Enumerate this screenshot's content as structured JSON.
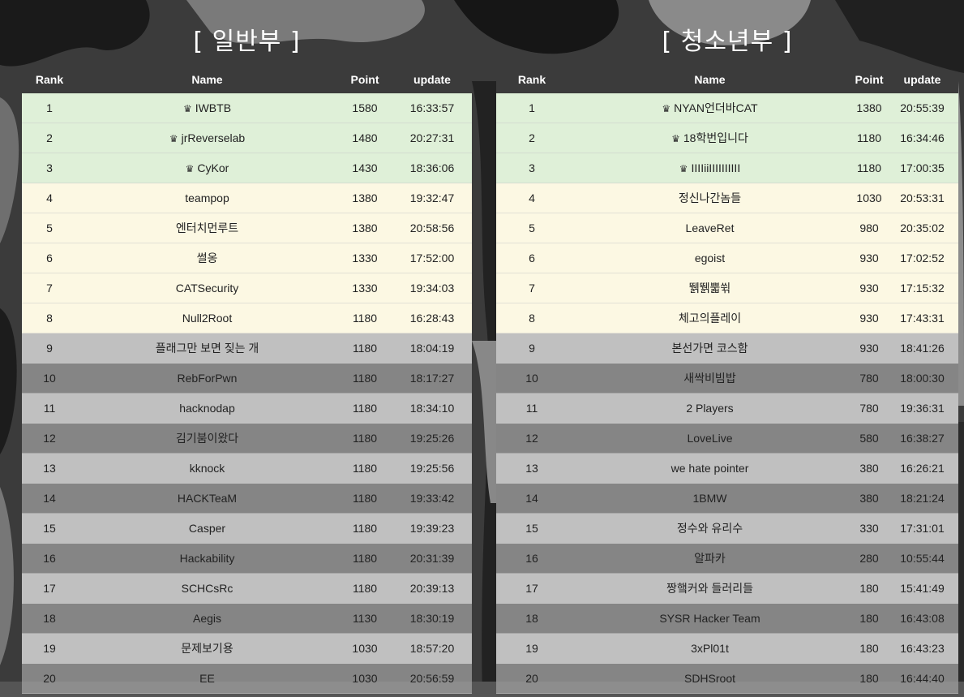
{
  "general": {
    "title": "[ 일반부 ]",
    "columns": [
      "Rank",
      "Name",
      "Point",
      "update"
    ],
    "rows": [
      {
        "rank": "1",
        "name": "IWBTB",
        "point": "1580",
        "update": "16:33:57",
        "tier": "gold"
      },
      {
        "rank": "2",
        "name": "jrReverselab",
        "point": "1480",
        "update": "20:27:31",
        "tier": "gold"
      },
      {
        "rank": "3",
        "name": "CyKor",
        "point": "1430",
        "update": "18:36:06",
        "tier": "gold"
      },
      {
        "rank": "4",
        "name": "teampop",
        "point": "1380",
        "update": "19:32:47",
        "tier": "yellow"
      },
      {
        "rank": "5",
        "name": "엔터치먼루트",
        "point": "1380",
        "update": "20:58:56",
        "tier": "yellow"
      },
      {
        "rank": "6",
        "name": "썰옹",
        "point": "1330",
        "update": "17:52:00",
        "tier": "yellow"
      },
      {
        "rank": "7",
        "name": "CATSecurity",
        "point": "1330",
        "update": "19:34:03",
        "tier": "yellow"
      },
      {
        "rank": "8",
        "name": "Null2Root",
        "point": "1180",
        "update": "16:28:43",
        "tier": "yellow"
      },
      {
        "rank": "9",
        "name": "플래그만 보면 짖는 개",
        "point": "1180",
        "update": "18:04:19",
        "tier": "odd"
      },
      {
        "rank": "10",
        "name": "RebForPwn",
        "point": "1180",
        "update": "18:17:27",
        "tier": "even"
      },
      {
        "rank": "11",
        "name": "hacknodap",
        "point": "1180",
        "update": "18:34:10",
        "tier": "odd"
      },
      {
        "rank": "12",
        "name": "김기붐이왔다",
        "point": "1180",
        "update": "19:25:26",
        "tier": "even"
      },
      {
        "rank": "13",
        "name": "kknock",
        "point": "1180",
        "update": "19:25:56",
        "tier": "odd"
      },
      {
        "rank": "14",
        "name": "HACKTeaM",
        "point": "1180",
        "update": "19:33:42",
        "tier": "even"
      },
      {
        "rank": "15",
        "name": "Casper",
        "point": "1180",
        "update": "19:39:23",
        "tier": "odd"
      },
      {
        "rank": "16",
        "name": "Hackability",
        "point": "1180",
        "update": "20:31:39",
        "tier": "even"
      },
      {
        "rank": "17",
        "name": "SCHCsRc",
        "point": "1180",
        "update": "20:39:13",
        "tier": "odd"
      },
      {
        "rank": "18",
        "name": "Aegis",
        "point": "1130",
        "update": "18:30:19",
        "tier": "even"
      },
      {
        "rank": "19",
        "name": "문제보기용",
        "point": "1030",
        "update": "18:57:20",
        "tier": "odd"
      },
      {
        "rank": "20",
        "name": "EE",
        "point": "1030",
        "update": "20:56:59",
        "tier": "even"
      }
    ]
  },
  "youth": {
    "title": "[ 청소년부 ]",
    "columns": [
      "Rank",
      "Name",
      "Point",
      "update"
    ],
    "rows": [
      {
        "rank": "1",
        "name": "NYAN언더바CAT",
        "point": "1380",
        "update": "20:55:39",
        "tier": "gold"
      },
      {
        "rank": "2",
        "name": "18학번입니다",
        "point": "1180",
        "update": "16:34:46",
        "tier": "gold"
      },
      {
        "rank": "3",
        "name": "IIIIiiIIIIIIIIII",
        "point": "1180",
        "update": "17:00:35",
        "tier": "gold"
      },
      {
        "rank": "4",
        "name": "정신나간놈들",
        "point": "1030",
        "update": "20:53:31",
        "tier": "yellow"
      },
      {
        "rank": "5",
        "name": "LeaveRet",
        "point": "980",
        "update": "20:35:02",
        "tier": "yellow"
      },
      {
        "rank": "6",
        "name": "egoist",
        "point": "930",
        "update": "17:02:52",
        "tier": "yellow"
      },
      {
        "rank": "7",
        "name": "뛝뛝뿗쒺",
        "point": "930",
        "update": "17:15:32",
        "tier": "yellow"
      },
      {
        "rank": "8",
        "name": "체고의플레이",
        "point": "930",
        "update": "17:43:31",
        "tier": "yellow"
      },
      {
        "rank": "9",
        "name": "본선가면 코스함",
        "point": "930",
        "update": "18:41:26",
        "tier": "odd"
      },
      {
        "rank": "10",
        "name": "새싹비빔밥",
        "point": "780",
        "update": "18:00:30",
        "tier": "even"
      },
      {
        "rank": "11",
        "name": "2 Players",
        "point": "780",
        "update": "19:36:31",
        "tier": "odd"
      },
      {
        "rank": "12",
        "name": "LoveLive",
        "point": "580",
        "update": "16:38:27",
        "tier": "even"
      },
      {
        "rank": "13",
        "name": "we hate pointer",
        "point": "380",
        "update": "16:26:21",
        "tier": "odd"
      },
      {
        "rank": "14",
        "name": "1BMW",
        "point": "380",
        "update": "18:21:24",
        "tier": "even"
      },
      {
        "rank": "15",
        "name": "정수와 유리수",
        "point": "330",
        "update": "17:31:01",
        "tier": "odd"
      },
      {
        "rank": "16",
        "name": "알파카",
        "point": "280",
        "update": "10:55:44",
        "tier": "even"
      },
      {
        "rank": "17",
        "name": "짱햌커와 들러리들",
        "point": "180",
        "update": "15:41:49",
        "tier": "odd"
      },
      {
        "rank": "18",
        "name": "SYSR Hacker Team",
        "point": "180",
        "update": "16:43:08",
        "tier": "even"
      },
      {
        "rank": "19",
        "name": "3xPl01t",
        "point": "180",
        "update": "16:43:23",
        "tier": "odd"
      },
      {
        "rank": "20",
        "name": "SDHSroot",
        "point": "180",
        "update": "16:44:40",
        "tier": "even"
      }
    ]
  },
  "crown_icon": "crown-icon",
  "colors": {
    "top3_row": "#dff0d8",
    "top8_row": "#fcf8e3",
    "title_text": "#ffffff"
  }
}
